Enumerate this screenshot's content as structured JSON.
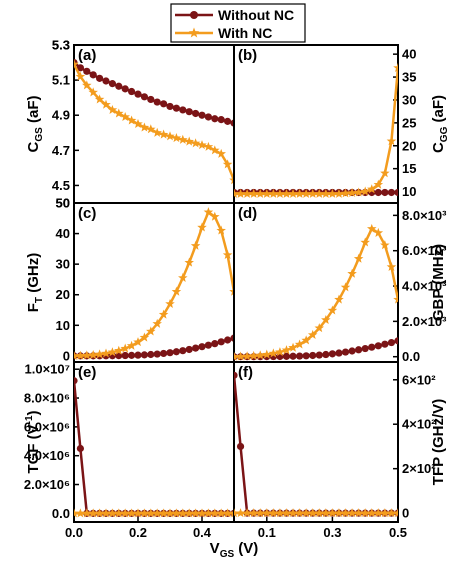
{
  "colors": {
    "without_nc": "#7b1416",
    "with_nc": "#f39c1e",
    "frame": "#000000"
  },
  "legend": [
    {
      "label": "Without NC",
      "marker": "circle",
      "color": "#7b1416"
    },
    {
      "label": "With NC",
      "marker": "star",
      "color": "#f39c1e"
    }
  ],
  "chart_data": [
    {
      "panel": "(a)",
      "type": "line",
      "ylabel": "C_GS (aF)",
      "ylabel_main": "C",
      "ylabel_sub": "GS",
      "ylabel_unit": " (aF)",
      "ylim": [
        4.4,
        5.3
      ],
      "yticks": [
        "4.5",
        "4.7",
        "4.9",
        "5.1",
        "5.3"
      ],
      "ytick_values": [
        4.5,
        4.7,
        4.9,
        5.1,
        5.3
      ],
      "xlim": [
        0,
        0.5
      ],
      "series": [
        {
          "name": "Without NC",
          "x": [
            0,
            0.02,
            0.04,
            0.06,
            0.08,
            0.1,
            0.12,
            0.14,
            0.16,
            0.18,
            0.2,
            0.22,
            0.24,
            0.26,
            0.28,
            0.3,
            0.32,
            0.34,
            0.36,
            0.38,
            0.4,
            0.42,
            0.44,
            0.46,
            0.48,
            0.5
          ],
          "y": [
            5.2,
            5.17,
            5.15,
            5.13,
            5.11,
            5.095,
            5.08,
            5.065,
            5.05,
            5.035,
            5.02,
            5.005,
            4.99,
            4.975,
            4.965,
            4.95,
            4.94,
            4.93,
            4.92,
            4.91,
            4.9,
            4.89,
            4.88,
            4.875,
            4.865,
            4.855
          ]
        },
        {
          "name": "With NC",
          "x": [
            0,
            0.02,
            0.04,
            0.06,
            0.08,
            0.1,
            0.12,
            0.14,
            0.16,
            0.18,
            0.2,
            0.22,
            0.24,
            0.26,
            0.28,
            0.3,
            0.32,
            0.34,
            0.36,
            0.38,
            0.4,
            0.42,
            0.44,
            0.46,
            0.48,
            0.5
          ],
          "y": [
            5.19,
            5.12,
            5.07,
            5.03,
            4.99,
            4.96,
            4.93,
            4.91,
            4.89,
            4.87,
            4.85,
            4.83,
            4.82,
            4.8,
            4.79,
            4.78,
            4.77,
            4.76,
            4.75,
            4.74,
            4.73,
            4.72,
            4.7,
            4.68,
            4.62,
            4.53
          ]
        }
      ]
    },
    {
      "panel": "(b)",
      "type": "line",
      "ylabel": "C_GG (aF)",
      "ylabel_main": "C",
      "ylabel_sub": "GG",
      "ylabel_unit": " (aF)",
      "ylim": [
        7.5,
        42
      ],
      "yticks": [
        "10",
        "15",
        "20",
        "25",
        "30",
        "35",
        "40"
      ],
      "ytick_values": [
        10,
        15,
        20,
        25,
        30,
        35,
        40
      ],
      "xlim": [
        0,
        0.5
      ],
      "series": [
        {
          "name": "Without NC",
          "x": [
            0,
            0.02,
            0.04,
            0.06,
            0.08,
            0.1,
            0.12,
            0.14,
            0.16,
            0.18,
            0.2,
            0.22,
            0.24,
            0.26,
            0.28,
            0.3,
            0.32,
            0.34,
            0.36,
            0.38,
            0.4,
            0.42,
            0.44,
            0.46,
            0.48,
            0.5
          ],
          "y": [
            9.8,
            9.8,
            9.8,
            9.8,
            9.8,
            9.8,
            9.8,
            9.8,
            9.8,
            9.8,
            9.8,
            9.8,
            9.8,
            9.8,
            9.8,
            9.8,
            9.8,
            9.8,
            9.8,
            9.8,
            9.8,
            9.8,
            9.8,
            9.8,
            9.8,
            9.8
          ]
        },
        {
          "name": "With NC",
          "x": [
            0,
            0.02,
            0.04,
            0.06,
            0.08,
            0.1,
            0.12,
            0.14,
            0.16,
            0.18,
            0.2,
            0.22,
            0.24,
            0.26,
            0.28,
            0.3,
            0.32,
            0.34,
            0.36,
            0.38,
            0.4,
            0.42,
            0.44,
            0.46,
            0.48,
            0.5
          ],
          "y": [
            9.5,
            9.5,
            9.5,
            9.5,
            9.5,
            9.5,
            9.5,
            9.5,
            9.5,
            9.5,
            9.5,
            9.5,
            9.5,
            9.5,
            9.5,
            9.5,
            9.5,
            9.6,
            9.7,
            9.8,
            10.0,
            10.5,
            11.5,
            14,
            21,
            37
          ]
        }
      ]
    },
    {
      "panel": "(c)",
      "type": "line",
      "ylabel": "F_T (GHz)",
      "ylabel_main": "F",
      "ylabel_sub": "T",
      "ylabel_unit": " (GHz)",
      "ylim": [
        -2,
        50
      ],
      "yticks": [
        "0",
        "10",
        "20",
        "30",
        "40",
        "50"
      ],
      "ytick_values": [
        0,
        10,
        20,
        30,
        40,
        50
      ],
      "xlim": [
        0,
        0.5
      ],
      "series": [
        {
          "name": "Without NC",
          "x": [
            0,
            0.02,
            0.04,
            0.06,
            0.08,
            0.1,
            0.12,
            0.14,
            0.16,
            0.18,
            0.2,
            0.22,
            0.24,
            0.26,
            0.28,
            0.3,
            0.32,
            0.34,
            0.36,
            0.38,
            0.4,
            0.42,
            0.44,
            0.46,
            0.48,
            0.5
          ],
          "y": [
            0,
            0,
            0,
            0,
            0.02,
            0.03,
            0.05,
            0.08,
            0.12,
            0.17,
            0.24,
            0.33,
            0.45,
            0.6,
            0.8,
            1.05,
            1.35,
            1.7,
            2.1,
            2.55,
            3.0,
            3.5,
            4.0,
            4.6,
            5.2,
            5.8
          ]
        },
        {
          "name": "With NC",
          "x": [
            0,
            0.02,
            0.04,
            0.06,
            0.08,
            0.1,
            0.12,
            0.14,
            0.16,
            0.18,
            0.2,
            0.22,
            0.24,
            0.26,
            0.28,
            0.3,
            0.32,
            0.34,
            0.36,
            0.38,
            0.4,
            0.42,
            0.44,
            0.46,
            0.48,
            0.5
          ],
          "y": [
            0,
            0.05,
            0.15,
            0.3,
            0.5,
            0.8,
            1.2,
            1.7,
            2.4,
            3.3,
            4.5,
            6.0,
            8.0,
            10.5,
            13.5,
            17.0,
            21.0,
            25.5,
            30.5,
            36.0,
            42.0,
            47.0,
            45.5,
            41.0,
            33.0,
            21.0
          ]
        }
      ]
    },
    {
      "panel": "(d)",
      "type": "line",
      "ylabel": "GBP (MHz)",
      "ylim": [
        -300,
        8700
      ],
      "yticks": [
        "0.0",
        "2.0×10³",
        "4.0×10³",
        "6.0×10³",
        "8.0×10³"
      ],
      "ytick_values": [
        0,
        2000,
        4000,
        6000,
        8000
      ],
      "xlim": [
        0,
        0.5
      ],
      "series": [
        {
          "name": "Without NC",
          "x": [
            0,
            0.02,
            0.04,
            0.06,
            0.08,
            0.1,
            0.12,
            0.14,
            0.16,
            0.18,
            0.2,
            0.22,
            0.24,
            0.26,
            0.28,
            0.3,
            0.32,
            0.34,
            0.36,
            0.38,
            0.4,
            0.42,
            0.44,
            0.46,
            0.48,
            0.5
          ],
          "y": [
            0,
            0,
            0,
            0,
            3,
            5,
            8,
            12,
            18,
            26,
            37,
            51,
            69,
            92,
            123,
            162,
            208,
            262,
            323,
            392,
            462,
            539,
            616,
            708,
            800,
            900
          ]
        },
        {
          "name": "With NC",
          "x": [
            0,
            0.02,
            0.04,
            0.06,
            0.08,
            0.1,
            0.12,
            0.14,
            0.16,
            0.18,
            0.2,
            0.22,
            0.24,
            0.26,
            0.28,
            0.3,
            0.32,
            0.34,
            0.36,
            0.38,
            0.4,
            0.42,
            0.44,
            0.46,
            0.48,
            0.5
          ],
          "y": [
            0,
            8,
            23,
            46,
            77,
            123,
            185,
            262,
            370,
            508,
            693,
            924,
            1232,
            1617,
            2079,
            2618,
            3234,
            3927,
            4697,
            5544,
            6468,
            7238,
            7007,
            6314,
            5082,
            3234
          ]
        }
      ]
    },
    {
      "panel": "(e)",
      "type": "line",
      "ylabel": "TGF (V^-1)",
      "ylabel_main": "TGF (V",
      "ylabel_sup": "-1",
      "ylabel_unit": ")",
      "ylim": [
        -600000,
        10500000
      ],
      "yticks": [
        "0.0",
        "2.0×10⁶",
        "4.0×10⁶",
        "6.0×10⁶",
        "8.0×10⁶",
        "1.0×10⁷"
      ],
      "ytick_values": [
        0,
        2000000,
        4000000,
        6000000,
        8000000,
        10000000
      ],
      "xlim": [
        0,
        0.5
      ],
      "xticks": [
        "0.0",
        "0.2",
        "0.4"
      ],
      "xtick_values": [
        0,
        0.2,
        0.4
      ],
      "series": [
        {
          "name": "Without NC",
          "x": [
            0,
            0.02,
            0.04,
            0.06,
            0.08,
            0.1,
            0.12,
            0.14,
            0.16,
            0.18,
            0.2,
            0.22,
            0.24,
            0.26,
            0.28,
            0.3,
            0.32,
            0.34,
            0.36,
            0.38,
            0.4,
            0.42,
            0.44,
            0.46,
            0.48,
            0.5
          ],
          "y": [
            9200000,
            4500000,
            0,
            0,
            0,
            0,
            0,
            0,
            0,
            0,
            0,
            0,
            0,
            0,
            0,
            0,
            0,
            0,
            0,
            0,
            0,
            0,
            0,
            0,
            0,
            0
          ]
        },
        {
          "name": "With NC",
          "x": [
            0,
            0.02,
            0.04,
            0.06,
            0.08,
            0.1,
            0.12,
            0.14,
            0.16,
            0.18,
            0.2,
            0.22,
            0.24,
            0.26,
            0.28,
            0.3,
            0.32,
            0.34,
            0.36,
            0.38,
            0.4,
            0.42,
            0.44,
            0.46,
            0.48,
            0.5
          ],
          "y": [
            0,
            0,
            0,
            0,
            0,
            0,
            0,
            0,
            0,
            0,
            0,
            0,
            0,
            0,
            0,
            0,
            0,
            0,
            0,
            0,
            0,
            0,
            0,
            0,
            0,
            0
          ]
        }
      ]
    },
    {
      "panel": "(f)",
      "type": "line",
      "ylabel": "TFP (GHz/V)",
      "ylim": [
        -40,
        680
      ],
      "yticks": [
        "0",
        "2×10²",
        "4×10²",
        "6×10²"
      ],
      "ytick_values": [
        0,
        200,
        400,
        600
      ],
      "xlim": [
        0,
        0.5
      ],
      "xticks": [
        "0.1",
        "0.3",
        "0.5"
      ],
      "xtick_values": [
        0.1,
        0.3,
        0.5
      ],
      "series": [
        {
          "name": "Without NC",
          "x": [
            0,
            0.02,
            0.04,
            0.06,
            0.08,
            0.1,
            0.12,
            0.14,
            0.16,
            0.18,
            0.2,
            0.22,
            0.24,
            0.26,
            0.28,
            0.3,
            0.32,
            0.34,
            0.36,
            0.38,
            0.4,
            0.42,
            0.44,
            0.46,
            0.48,
            0.5
          ],
          "y": [
            620,
            300,
            0,
            0,
            0,
            0,
            0,
            0,
            0,
            0,
            0,
            0,
            0,
            0,
            0,
            0,
            0,
            0,
            0,
            0,
            0,
            0,
            0,
            0,
            0,
            0
          ]
        },
        {
          "name": "With NC",
          "x": [
            0,
            0.02,
            0.04,
            0.06,
            0.08,
            0.1,
            0.12,
            0.14,
            0.16,
            0.18,
            0.2,
            0.22,
            0.24,
            0.26,
            0.28,
            0.3,
            0.32,
            0.34,
            0.36,
            0.38,
            0.4,
            0.42,
            0.44,
            0.46,
            0.48,
            0.5
          ],
          "y": [
            0,
            0,
            0,
            0,
            0,
            0,
            0,
            0,
            0,
            0,
            0,
            0,
            0,
            0,
            0,
            0,
            0,
            0,
            0,
            0,
            0,
            0,
            0,
            0,
            0,
            0
          ]
        }
      ]
    }
  ],
  "shared": {
    "left_top_tick": "5.3",
    "left_mid_tick": "50",
    "xlabel": "V_GS (V)",
    "xlabel_main": "V",
    "xlabel_sub": "GS",
    "xlabel_unit": " (V)"
  }
}
